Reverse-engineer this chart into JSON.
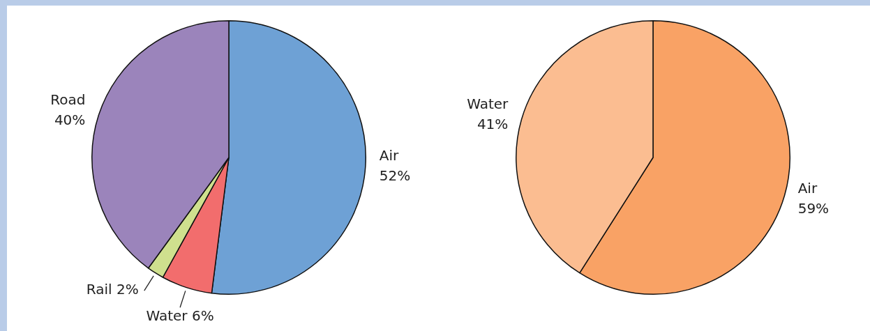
{
  "chart_data": [
    {
      "type": "pie",
      "categories": [
        "Air",
        "Water",
        "Rail",
        "Road"
      ],
      "values": [
        52,
        6,
        2,
        40
      ],
      "value_labels": [
        "52%",
        "6%",
        "2%",
        "40%"
      ],
      "colors": [
        "#6ea1d5",
        "#f26d6d",
        "#cfe08e",
        "#9b84bb"
      ]
    },
    {
      "type": "pie",
      "categories": [
        "Air",
        "Water"
      ],
      "values": [
        59,
        41
      ],
      "value_labels": [
        "59%",
        "41%"
      ],
      "colors": [
        "#f9a265",
        "#fbbd91"
      ]
    }
  ]
}
